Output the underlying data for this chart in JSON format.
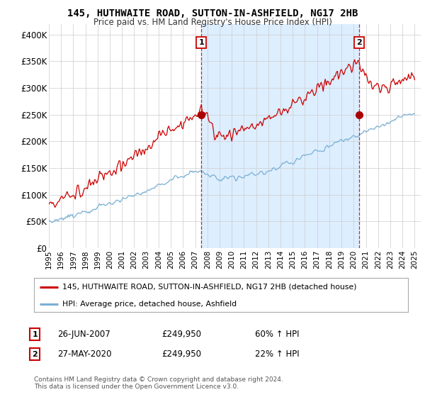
{
  "title": "145, HUTHWAITE ROAD, SUTTON-IN-ASHFIELD, NG17 2HB",
  "subtitle": "Price paid vs. HM Land Registry's House Price Index (HPI)",
  "ylim": [
    0,
    420000
  ],
  "yticks": [
    0,
    50000,
    100000,
    150000,
    200000,
    250000,
    300000,
    350000,
    400000
  ],
  "ytick_labels": [
    "£0",
    "£50K",
    "£100K",
    "£150K",
    "£200K",
    "£250K",
    "£300K",
    "£350K",
    "£400K"
  ],
  "line1_color": "#cc0000",
  "line2_color": "#7ab0d4",
  "shade_color": "#ddeeff",
  "sale1_year": 2007.5,
  "sale2_year": 2020.42,
  "sale1_val": 249950,
  "sale2_val": 249950,
  "sale1_date": "26-JUN-2007",
  "sale1_price": "£249,950",
  "sale1_hpi": "60% ↑ HPI",
  "sale2_date": "27-MAY-2020",
  "sale2_price": "£249,950",
  "sale2_hpi": "22% ↑ HPI",
  "legend1": "145, HUTHWAITE ROAD, SUTTON-IN-ASHFIELD, NG17 2HB (detached house)",
  "legend2": "HPI: Average price, detached house, Ashfield",
  "footnote": "Contains HM Land Registry data © Crown copyright and database right 2024.\nThis data is licensed under the Open Government Licence v3.0.",
  "bg_color": "#ffffff",
  "grid_color": "#cccccc",
  "title_fontsize": 10,
  "subtitle_fontsize": 8.5
}
